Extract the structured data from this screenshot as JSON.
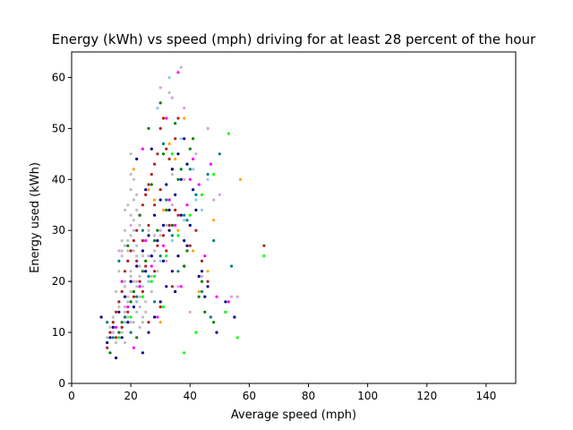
{
  "chart_data": {
    "type": "scatter",
    "title": "Energy (kWh) vs speed (mph) driving for at least 28 percent of the hour",
    "xlabel": "Average speed (mph)",
    "ylabel": "Energy used (kWh)",
    "xlim": [
      0,
      150
    ],
    "ylim": [
      0,
      65
    ],
    "xticks": [
      0,
      20,
      40,
      60,
      80,
      100,
      120,
      140
    ],
    "yticks": [
      0,
      10,
      20,
      30,
      40,
      50,
      60
    ],
    "xtick_labels": [
      "0",
      "20",
      "40",
      "60",
      "80",
      "100",
      "120",
      "140"
    ],
    "ytick_labels": [
      "0",
      "10",
      "20",
      "30",
      "40",
      "50",
      "60"
    ],
    "grid": false,
    "legend": "none",
    "colors": [
      "#bebebe",
      "#b22222",
      "#00008b",
      "#008000",
      "#008080",
      "#ff00ff",
      "#dda0dd",
      "#ffa500",
      "#00ff00",
      "#87ceeb"
    ],
    "series": [
      {
        "color": "#bebebe",
        "x": [
          14,
          15,
          16,
          16,
          17,
          17,
          18,
          18,
          18,
          19,
          19,
          19,
          20,
          20,
          20,
          20,
          21,
          21,
          21,
          21,
          22,
          22,
          22,
          23,
          23,
          23,
          24,
          24,
          25,
          25,
          26,
          26,
          27,
          28,
          16,
          17,
          18,
          19,
          20,
          21,
          22,
          23,
          24,
          19,
          20,
          21,
          22,
          18,
          17,
          20,
          21,
          22,
          23,
          24,
          25,
          19,
          20,
          21,
          15,
          16,
          18,
          20,
          22,
          24,
          26,
          28,
          30,
          32,
          34,
          31,
          37,
          33,
          12,
          13,
          14,
          15,
          17,
          19,
          23,
          25,
          27,
          29,
          21,
          22,
          20,
          18
        ],
        "y": [
          12,
          18,
          15,
          22,
          10,
          25,
          14,
          20,
          30,
          16,
          24,
          28,
          12,
          18,
          22,
          33,
          15,
          20,
          26,
          36,
          14,
          19,
          27,
          17,
          23,
          31,
          12,
          25,
          16,
          28,
          20,
          30,
          18,
          24,
          9,
          11,
          8,
          13,
          10,
          12,
          9,
          11,
          13,
          35,
          38,
          40,
          37,
          34,
          28,
          45,
          30,
          25,
          21,
          19,
          22,
          26,
          29,
          32,
          14,
          16,
          19,
          21,
          23,
          17,
          20,
          26,
          29,
          31,
          41,
          47,
          62,
          57,
          9,
          11,
          13,
          8,
          26,
          17,
          15,
          14,
          21,
          22,
          18,
          34,
          41,
          27
        ]
      },
      {
        "color": "#b22222",
        "x": [
          12,
          13,
          14,
          15,
          16,
          17,
          18,
          19,
          20,
          21,
          22,
          23,
          24,
          25,
          26,
          27,
          28,
          29,
          30,
          31,
          32,
          33,
          34,
          35,
          36,
          17,
          19,
          21,
          23,
          25,
          27,
          29,
          31,
          33,
          35,
          20,
          22,
          24,
          26,
          28,
          30,
          15,
          18,
          24,
          28,
          32,
          36,
          22,
          26,
          30,
          34,
          38,
          40,
          42,
          44,
          46,
          65
        ],
        "y": [
          7,
          10,
          12,
          14,
          16,
          18,
          22,
          24,
          26,
          28,
          30,
          33,
          35,
          37,
          39,
          41,
          43,
          45,
          50,
          52,
          46,
          44,
          42,
          48,
          52,
          11,
          14,
          17,
          20,
          23,
          25,
          27,
          29,
          31,
          34,
          20,
          24,
          28,
          31,
          35,
          38,
          9,
          13,
          18,
          22,
          26,
          33,
          16,
          12,
          15,
          19,
          23,
          27,
          30,
          24,
          20,
          27
        ]
      },
      {
        "color": "#00008b",
        "x": [
          12,
          14,
          16,
          18,
          20,
          22,
          24,
          26,
          28,
          30,
          32,
          34,
          36,
          38,
          15,
          17,
          19,
          21,
          23,
          25,
          27,
          29,
          31,
          33,
          35,
          37,
          39,
          24,
          26,
          28,
          30,
          32,
          34,
          36,
          38,
          40,
          42,
          44,
          46,
          22,
          27,
          33,
          37,
          41,
          45,
          49,
          52,
          55,
          10,
          13,
          25,
          31,
          35,
          39,
          43
        ],
        "y": [
          8,
          11,
          14,
          17,
          20,
          23,
          26,
          29,
          33,
          36,
          39,
          42,
          45,
          48,
          5,
          9,
          12,
          15,
          19,
          22,
          25,
          28,
          31,
          34,
          37,
          40,
          43,
          6,
          10,
          13,
          16,
          19,
          22,
          25,
          28,
          31,
          34,
          22,
          19,
          44,
          46,
          30,
          33,
          38,
          17,
          10,
          16,
          13,
          13,
          9,
          38,
          24,
          18,
          27,
          21
        ]
      },
      {
        "color": "#008000",
        "x": [
          13,
          17,
          21,
          25,
          29,
          33,
          37,
          41,
          45,
          16,
          20,
          24,
          28,
          32,
          36,
          40,
          44,
          48,
          19,
          23,
          27,
          31,
          35,
          39,
          43,
          30,
          34,
          38,
          26,
          22
        ],
        "y": [
          6,
          12,
          18,
          24,
          30,
          36,
          42,
          48,
          14,
          10,
          16,
          22,
          28,
          34,
          40,
          46,
          20,
          12,
          27,
          33,
          39,
          45,
          51,
          26,
          17,
          55,
          31,
          23,
          50,
          9
        ]
      },
      {
        "color": "#008080",
        "x": [
          14,
          18,
          22,
          26,
          30,
          34,
          38,
          42,
          46,
          50,
          54,
          16,
          24,
          32,
          40,
          48,
          20,
          28,
          36,
          44,
          52,
          12,
          31,
          39,
          47
        ],
        "y": [
          9,
          13,
          17,
          21,
          25,
          29,
          33,
          37,
          41,
          45,
          23,
          24,
          30,
          36,
          42,
          28,
          10,
          16,
          22,
          18,
          14,
          12,
          47,
          32,
          13
        ]
      },
      {
        "color": "#ff00ff",
        "x": [
          15,
          19,
          23,
          27,
          31,
          35,
          39,
          43,
          47,
          17,
          25,
          33,
          41,
          21,
          29,
          37,
          45,
          49,
          53,
          24,
          32,
          40,
          36
        ],
        "y": [
          11,
          15,
          19,
          23,
          27,
          31,
          35,
          39,
          43,
          20,
          28,
          36,
          44,
          7,
          13,
          19,
          25,
          17,
          16,
          46,
          52,
          40,
          61
        ]
      },
      {
        "color": "#dda0dd",
        "x": [
          14,
          18,
          22,
          26,
          30,
          34,
          38,
          42,
          46,
          50,
          54,
          16,
          20,
          28,
          32,
          36,
          40,
          44,
          48,
          30,
          34,
          38,
          56,
          46
        ],
        "y": [
          10,
          15,
          20,
          25,
          30,
          35,
          40,
          45,
          50,
          37,
          17,
          26,
          31,
          29,
          24,
          19,
          14,
          21,
          36,
          58,
          56,
          54,
          17,
          50
        ]
      },
      {
        "color": "#ffa500",
        "x": [
          21,
          26,
          31,
          36,
          41,
          46,
          28,
          33,
          38,
          43,
          48,
          57,
          35,
          30
        ],
        "y": [
          42,
          38,
          34,
          30,
          26,
          22,
          36,
          47,
          52,
          18,
          32,
          40,
          44,
          12
        ]
      },
      {
        "color": "#00ff00",
        "x": [
          16,
          20,
          24,
          28,
          32,
          36,
          40,
          44,
          48,
          52,
          56,
          65,
          34,
          38,
          42,
          53,
          27,
          31
        ],
        "y": [
          9,
          13,
          17,
          21,
          25,
          29,
          33,
          37,
          41,
          14,
          9,
          25,
          45,
          6,
          10,
          49,
          20,
          15
        ]
      },
      {
        "color": "#87ceeb",
        "x": [
          18,
          22,
          26,
          30,
          34,
          38,
          42,
          46,
          33,
          29,
          37,
          41,
          44
        ],
        "y": [
          12,
          16,
          20,
          24,
          28,
          32,
          36,
          40,
          60,
          54,
          48,
          42,
          34
        ]
      }
    ]
  }
}
